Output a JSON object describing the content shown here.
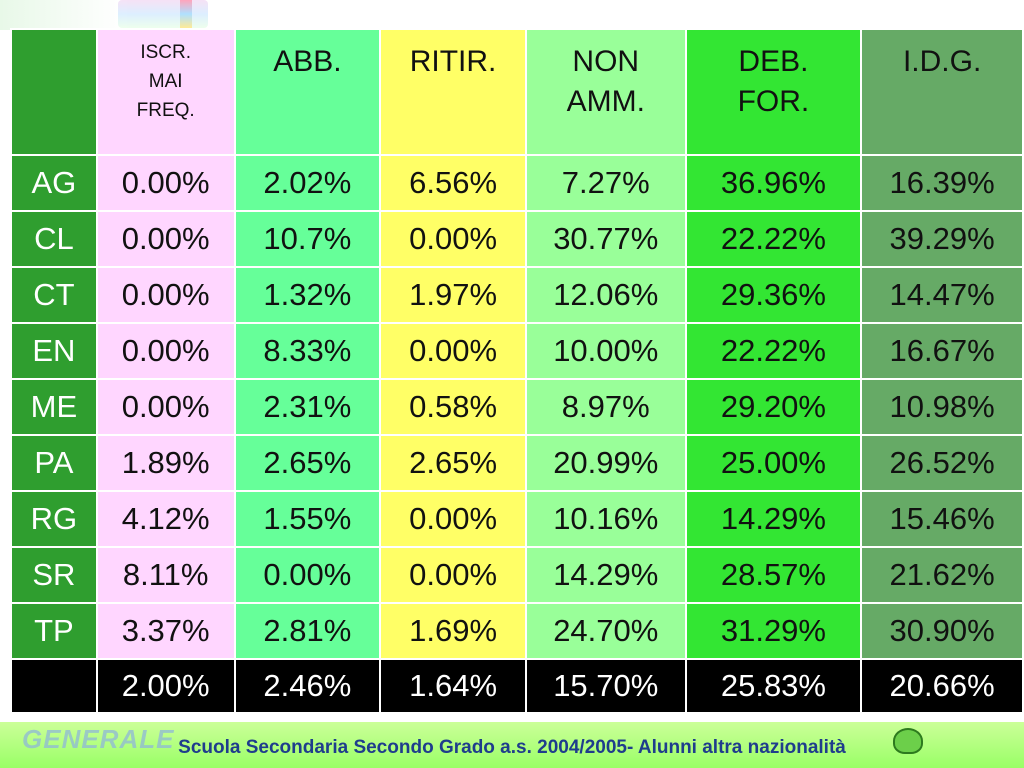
{
  "table": {
    "headers": [
      {
        "lines": [
          "ISCR.",
          "MAI",
          "FREQ."
        ]
      },
      {
        "lines": [
          "ABB."
        ]
      },
      {
        "lines": [
          "RITIR."
        ]
      },
      {
        "lines": [
          "NON",
          "AMM."
        ]
      },
      {
        "lines": [
          "DEB.",
          "FOR."
        ]
      },
      {
        "lines": [
          "I.D.G."
        ]
      }
    ],
    "rows": [
      {
        "label": "AG",
        "values": [
          "0.00%",
          "2.02%",
          "6.56%",
          "7.27%",
          "36.96%",
          "16.39%"
        ]
      },
      {
        "label": "CL",
        "values": [
          "0.00%",
          "10.7%",
          "0.00%",
          "30.77%",
          "22.22%",
          "39.29%"
        ]
      },
      {
        "label": "CT",
        "values": [
          "0.00%",
          "1.32%",
          "1.97%",
          "12.06%",
          "29.36%",
          "14.47%"
        ]
      },
      {
        "label": "EN",
        "values": [
          "0.00%",
          "8.33%",
          "0.00%",
          "10.00%",
          "22.22%",
          "16.67%"
        ]
      },
      {
        "label": "ME",
        "values": [
          "0.00%",
          "2.31%",
          "0.58%",
          "8.97%",
          "29.20%",
          "10.98%"
        ]
      },
      {
        "label": "PA",
        "values": [
          "1.89%",
          "2.65%",
          "2.65%",
          "20.99%",
          "25.00%",
          "26.52%"
        ]
      },
      {
        "label": "RG",
        "values": [
          "4.12%",
          "1.55%",
          "0.00%",
          "10.16%",
          "14.29%",
          "15.46%"
        ]
      },
      {
        "label": "SR",
        "values": [
          "8.11%",
          "0.00%",
          "0.00%",
          "14.29%",
          "28.57%",
          "21.62%"
        ]
      },
      {
        "label": "TP",
        "values": [
          "3.37%",
          "2.81%",
          "1.69%",
          "24.70%",
          "31.29%",
          "30.90%"
        ]
      }
    ],
    "totals": [
      "2.00%",
      "2.46%",
      "1.64%",
      "15.70%",
      "25.83%",
      "20.66%"
    ]
  },
  "footer": {
    "caption": "Scuola Secondaria Secondo Grado a.s. 2004/2005- Alunni altra nazionalità",
    "logo_text": "GENERALE"
  },
  "colors": {
    "label_column": "#2f9e2f",
    "col_iscr": "#ffd6ff",
    "col_abb": "#66ff99",
    "col_ritir": "#ffff66",
    "col_nonamm": "#99ff99",
    "col_debfor": "#33e633",
    "col_idg": "#66aa66",
    "totals_row": "#000000"
  },
  "icons": [
    "frog-mascot-icon"
  ]
}
